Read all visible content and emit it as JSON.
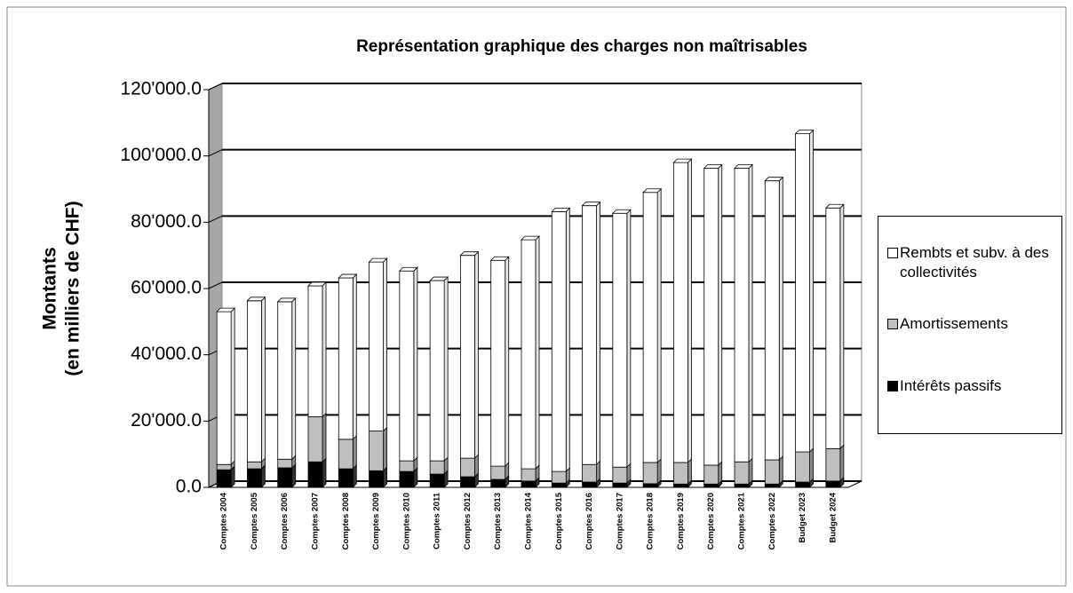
{
  "chart_data": {
    "type": "bar3d_stacked",
    "title": "Représentation graphique des charges non maîtrisables",
    "y_label": [
      "Montants",
      "(en milliers de CHF)"
    ],
    "categories": [
      "Comptes 2004",
      "Comptes 2005",
      "Comptes 2006",
      "Comptes 2007",
      "Comptes 2008",
      "Comptes 2009",
      "Comptes 2010",
      "Comptes 2011",
      "Comptes 2012",
      "Comptes 2013",
      "Comptes 2014",
      "Comptes 2015",
      "Comptes 2016",
      "Comptes 2017",
      "Comptes 2018",
      "Comptes 2019",
      "Comptes 2020",
      "Comptes 2021",
      "Comptes 2022",
      "Budget 2023",
      "Budget 2024"
    ],
    "series": [
      {
        "name": "Intérêts passifs",
        "color": "#000000",
        "values": [
          5300,
          5600,
          5900,
          7700,
          5600,
          5000,
          4800,
          4000,
          3200,
          2400,
          1900,
          1300,
          1600,
          1300,
          1100,
          1000,
          1000,
          1000,
          1000,
          1600,
          1900
        ]
      },
      {
        "name": "Amortissements",
        "color": "#bfbfbf",
        "values": [
          1600,
          2100,
          2600,
          13600,
          8900,
          12000,
          3200,
          4000,
          5600,
          4000,
          3700,
          3500,
          5300,
          4800,
          6400,
          6500,
          5700,
          6700,
          7300,
          9100,
          9800
        ]
      },
      {
        "name": "Rembts et subv. à des collectivités",
        "color": "#ffffff",
        "values": [
          46100,
          48600,
          47500,
          39500,
          48700,
          51000,
          57300,
          54400,
          61200,
          62100,
          69100,
          78400,
          78100,
          76600,
          81500,
          90500,
          89600,
          88600,
          84200,
          96000,
          72600
        ]
      }
    ],
    "ylim": [
      0,
      120000
    ],
    "yticks": [
      {
        "value": 0,
        "label": "0.0"
      },
      {
        "value": 20000,
        "label": "20'000.0"
      },
      {
        "value": 40000,
        "label": "40'000.0"
      },
      {
        "value": 60000,
        "label": "60'000.0"
      },
      {
        "value": 80000,
        "label": "80'000.0"
      },
      {
        "value": 100000,
        "label": "100'000.0"
      },
      {
        "value": 120000,
        "label": "120'000.0"
      }
    ],
    "grid": true,
    "legend": "right"
  }
}
